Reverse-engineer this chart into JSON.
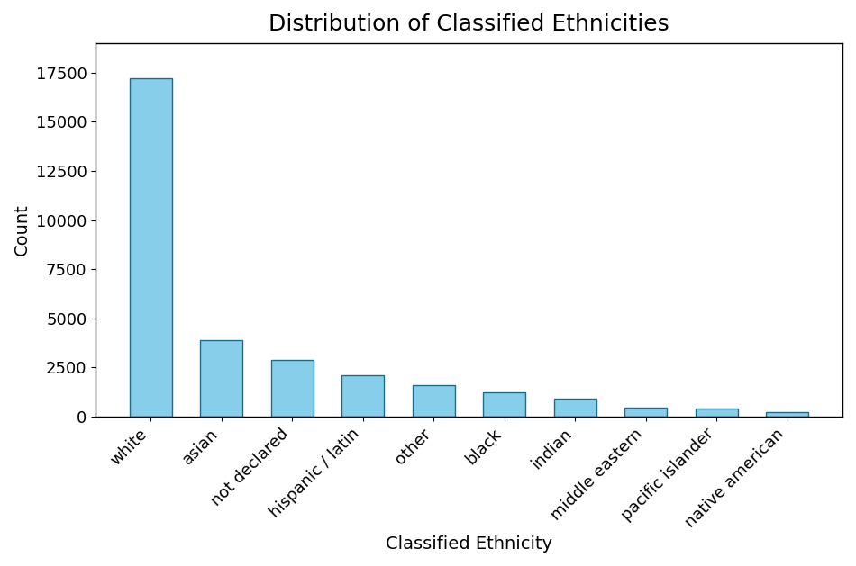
{
  "categories": [
    "white",
    "asian",
    "not declared",
    "hispanic / latin",
    "other",
    "black",
    "indian",
    "middle eastern",
    "pacific islander",
    "native american"
  ],
  "values": [
    17200,
    3900,
    2900,
    2100,
    1600,
    1250,
    900,
    450,
    400,
    250
  ],
  "bar_color": "#87CEEB",
  "bar_edgecolor": "#1a6e8a",
  "title": "Distribution of Classified Ethnicities",
  "xlabel": "Classified Ethnicity",
  "ylabel": "Count",
  "title_fontsize": 18,
  "label_fontsize": 14,
  "tick_fontsize": 13,
  "yticks": [
    0,
    2500,
    5000,
    7500,
    10000,
    12500,
    15000,
    17500
  ],
  "ylim": [
    0,
    19000
  ],
  "background_color": "#ffffff"
}
